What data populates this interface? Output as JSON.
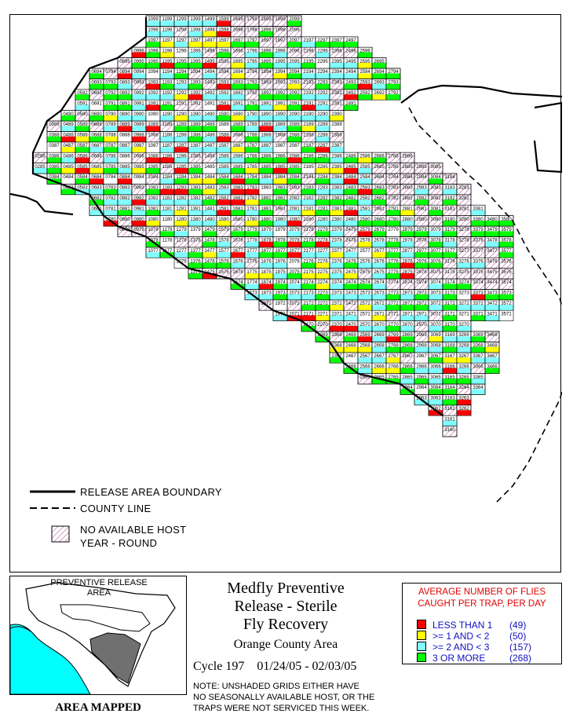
{
  "colors": {
    "lt1": "#ff0000",
    "b1to2": "#ffff00",
    "b2to3": "#7fffff",
    "ge3": "#00ff00",
    "nohost_hatch": "#b04090",
    "stats_title": "#e00000",
    "stats_text": "#1010c0",
    "inset_water": "#00ffff",
    "inset_mapped": "#707070"
  },
  "grid": {
    "labels_sample": [
      "1099",
      "1199",
      "1299",
      "1399",
      "1499",
      "1599",
      "1699",
      "1799",
      "1899",
      "1999",
      "2099",
      "2199",
      "3160"
    ],
    "label_rule": "four-digit grid id = column number (06-36) followed by row number (60-99)"
  },
  "legend": {
    "boundary_label": "RELEASE AREA BOUNDARY",
    "county_label": "COUNTY LINE",
    "nohost_line1": "NO AVAILABLE HOST",
    "nohost_line2": "YEAR - ROUND"
  },
  "inset": {
    "title_line1": "PREVENTIVE RELEASE",
    "title_line2": "AREA",
    "caption": "AREA MAPPED"
  },
  "title": {
    "line1": "Medfly Preventive",
    "line2": "Release - Sterile",
    "line3": "Fly Recovery"
  },
  "subtitle": "Orange County Area",
  "cycle": "Cycle 197    01/24/05 - 02/03/05",
  "note": {
    "line1": "NOTE: UNSHADED GRIDS EITHER HAVE",
    "line2": "NO SEASONALLY AVAILABLE HOST, OR THE",
    "line3": "TRAPS WERE NOT SERVICED THIS WEEK."
  },
  "stats": {
    "title_line1": "AVERAGE NUMBER OF FLIES",
    "title_line2": "CAUGHT PER TRAP, PER DAY",
    "rows": [
      {
        "label": "LESS THAN 1",
        "count": "(49)"
      },
      {
        "label": ">= 1 AND < 2",
        "count": "(50)"
      },
      {
        "label": ">= 2 AND < 3",
        "count": "(157)"
      },
      {
        "label": "3 OR MORE",
        "count": "(268)"
      }
    ]
  }
}
